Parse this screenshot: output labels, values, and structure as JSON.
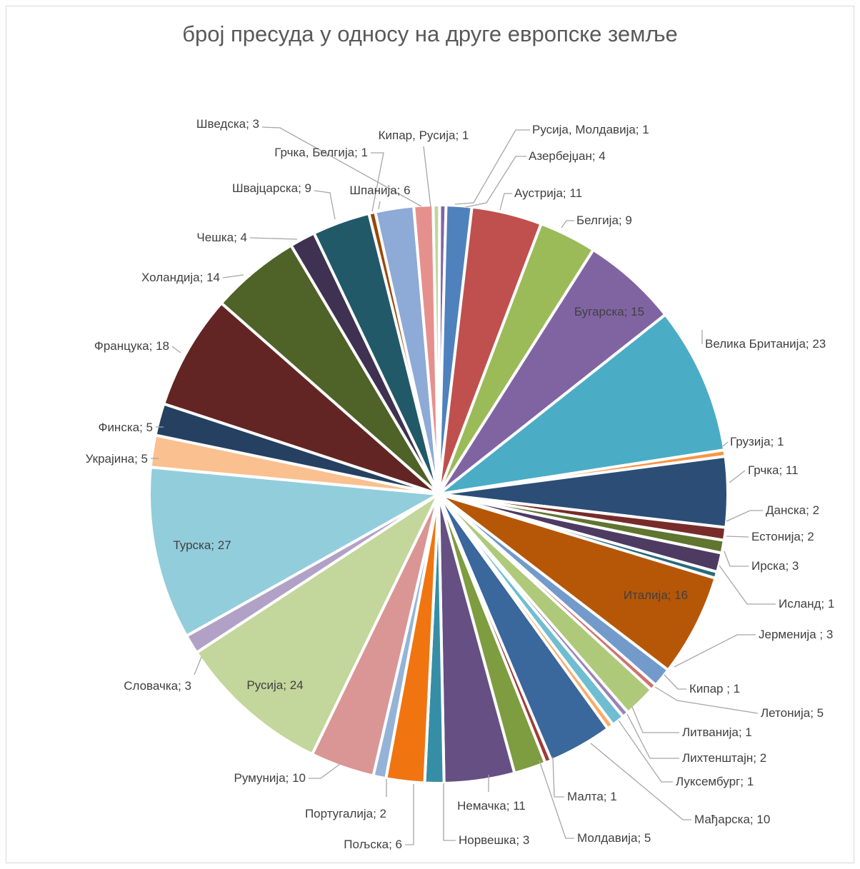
{
  "chart_data": {
    "type": "pie",
    "title": "број пресуда у односу на друге европске земље",
    "label_separator": "; ",
    "slices": [
      {
        "label": "Русија, Молдавија",
        "value": 1,
        "color": "#8064a2"
      },
      {
        "label": "Азербејџан",
        "value": 4,
        "color": "#4f81bd"
      },
      {
        "label": "Аустрија",
        "value": 11,
        "color": "#c0504d"
      },
      {
        "label": "Белгија",
        "value": 9,
        "color": "#9bbb59"
      },
      {
        "label": "Бугарска",
        "value": 15,
        "color": "#8064a2"
      },
      {
        "label": "Велика Британија",
        "value": 23,
        "color": "#4bacc6"
      },
      {
        "label": "Грузија",
        "value": 1,
        "color": "#f79646"
      },
      {
        "label": "Грчка",
        "value": 11,
        "color": "#2c4d75"
      },
      {
        "label": "Данска",
        "value": 2,
        "color": "#772c2a"
      },
      {
        "label": "Естонија",
        "value": 2,
        "color": "#5f7530"
      },
      {
        "label": "Ирска",
        "value": 3,
        "color": "#4d3b62"
      },
      {
        "label": "Исланд",
        "value": 1,
        "color": "#276a7c"
      },
      {
        "label": "Италија",
        "value": 16,
        "color": "#b65708"
      },
      {
        "label": "Јерменија ",
        "value": 3,
        "color": "#729aca"
      },
      {
        "label": "Кипар ",
        "value": 1,
        "color": "#cd7371"
      },
      {
        "label": "Летонија",
        "value": 5,
        "color": "#afc97a"
      },
      {
        "label": "Литванија",
        "value": 1,
        "color": "#9983b5"
      },
      {
        "label": "Лихтенштајн",
        "value": 2,
        "color": "#6fbdd1"
      },
      {
        "label": "Луксембург",
        "value": 1,
        "color": "#f9ab6b"
      },
      {
        "label": "Мађарска",
        "value": 10,
        "color": "#3a679c"
      },
      {
        "label": "Малта",
        "value": 1,
        "color": "#9e3b38"
      },
      {
        "label": "Молдавија",
        "value": 5,
        "color": "#7e9c40"
      },
      {
        "label": "Немачка",
        "value": 11,
        "color": "#664f83"
      },
      {
        "label": "Норвешка",
        "value": 3,
        "color": "#358ea6"
      },
      {
        "label": "Пољска",
        "value": 6,
        "color": "#f07510"
      },
      {
        "label": "Португалија",
        "value": 2,
        "color": "#95b3d7"
      },
      {
        "label": "Румунија",
        "value": 10,
        "color": "#d99694"
      },
      {
        "label": "Русија",
        "value": 24,
        "color": "#c3d69b"
      },
      {
        "label": "Словачка",
        "value": 3,
        "color": "#b2a1c7"
      },
      {
        "label": "Турска",
        "value": 27,
        "color": "#92cddc"
      },
      {
        "label": "Украјина",
        "value": 5,
        "color": "#fac090"
      },
      {
        "label": "Финска",
        "value": 5,
        "color": "#254061"
      },
      {
        "label": "Францука",
        "value": 18,
        "color": "#632523"
      },
      {
        "label": "Холандија",
        "value": 14,
        "color": "#4f6228"
      },
      {
        "label": "Чешка",
        "value": 4,
        "color": "#3f3151"
      },
      {
        "label": "Швајцарска",
        "value": 9,
        "color": "#215968"
      },
      {
        "label": "Грчка, Белгија",
        "value": 1,
        "color": "#984807"
      },
      {
        "label": "Шпанија",
        "value": 6,
        "color": "#8eaad6"
      },
      {
        "label": "Шведска",
        "value": 3,
        "color": "#e6908e"
      },
      {
        "label": "Кипар, Русија",
        "value": 1,
        "color": "#c2d59b"
      }
    ]
  }
}
